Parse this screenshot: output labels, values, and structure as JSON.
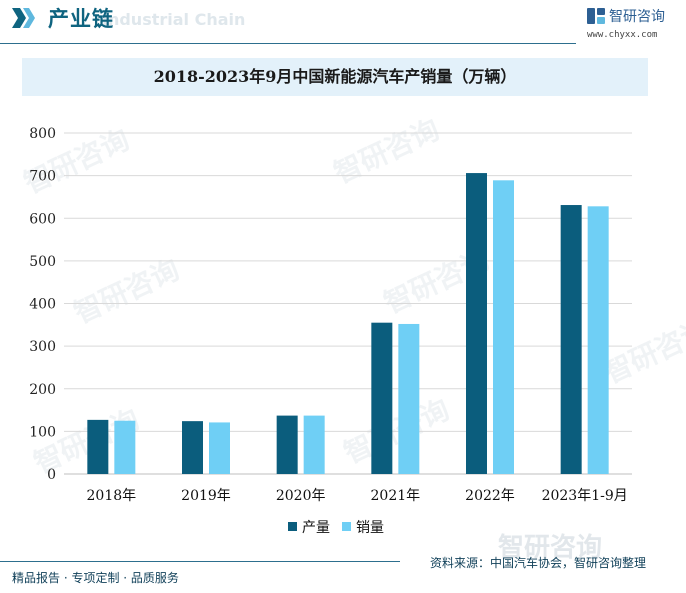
{
  "header": {
    "title": "产业链",
    "ghost_text": "Industrial Chain",
    "brand_name": "智研咨询",
    "brand_url": "www.chyxx.com"
  },
  "footer": {
    "left": "精品报告 · 专项定制 · 品质服务",
    "right": "资料来源：中国汽车协会，智研咨询整理",
    "watermark": "智研咨询"
  },
  "watermark_text": "智研咨询",
  "colors": {
    "production": "#0b5d7d",
    "sales": "#6fcff5",
    "grid": "#d9d9d9",
    "accent": "#0f6480"
  },
  "chart_data": {
    "type": "bar",
    "title": "2018-2023年9月中国新能源汽车产销量（万辆）",
    "categories": [
      "2018年",
      "2019年",
      "2020年",
      "2021年",
      "2022年",
      "2023年1-9月"
    ],
    "series": [
      {
        "name": "产量",
        "values": [
          127,
          124,
          137,
          355,
          706,
          631
        ]
      },
      {
        "name": "销量",
        "values": [
          125,
          121,
          137,
          352,
          689,
          628
        ]
      }
    ],
    "ylim": [
      0,
      800
    ],
    "yticks": [
      0,
      100,
      200,
      300,
      400,
      500,
      600,
      700,
      800
    ],
    "grid": true,
    "legend_position": "bottom",
    "xlabel": "",
    "ylabel": ""
  }
}
